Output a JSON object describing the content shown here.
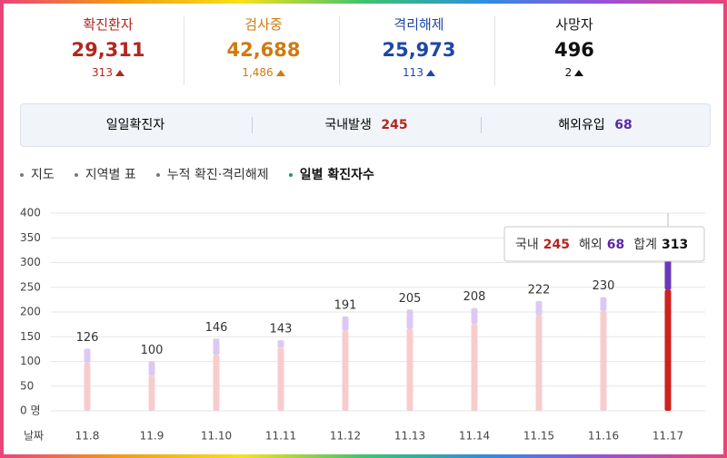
{
  "stats": [
    {
      "label": "확진환자",
      "value": "29,311",
      "change": "313"
    },
    {
      "label": "검사중",
      "value": "42,688",
      "change": "1,486"
    },
    {
      "label": "격리해제",
      "value": "25,973",
      "change": "113"
    },
    {
      "label": "사망자",
      "value": "496",
      "change": "2"
    }
  ],
  "summary": {
    "label": "일일확진자",
    "domestic_label": "국내발생",
    "domestic": "245",
    "overseas_label": "해외유입",
    "overseas": "68"
  },
  "tabs": [
    "지도",
    "지역별 표",
    "누적 확진·격리해제",
    "일별 확진자수"
  ],
  "active_tab": 3,
  "chart_data": {
    "type": "stacked-bar",
    "xlabel": "날짜",
    "categories": [
      "11.8",
      "11.9",
      "11.10",
      "11.11",
      "11.12",
      "11.13",
      "11.14",
      "11.15",
      "11.16",
      "11.17"
    ],
    "series": [
      {
        "name": "국내",
        "color": "#f8cccc",
        "highlight_color": "#d0211c",
        "values": [
          97,
          71,
          113,
          128,
          162,
          166,
          176,
          193,
          202,
          245
        ]
      },
      {
        "name": "해외",
        "color": "#dcc9f3",
        "highlight_color": "#6b38b8",
        "values": [
          29,
          29,
          33,
          15,
          29,
          39,
          32,
          29,
          28,
          68
        ]
      }
    ],
    "totals": [
      126,
      100,
      146,
      143,
      191,
      205,
      208,
      222,
      230,
      313
    ],
    "total_label": "합계",
    "highlight": 9,
    "ylim": [
      0,
      400
    ],
    "yticks": [
      {
        "value": 0,
        "label": "0 명"
      },
      50,
      100,
      150,
      200,
      250,
      300,
      350,
      400
    ],
    "grid": true
  }
}
